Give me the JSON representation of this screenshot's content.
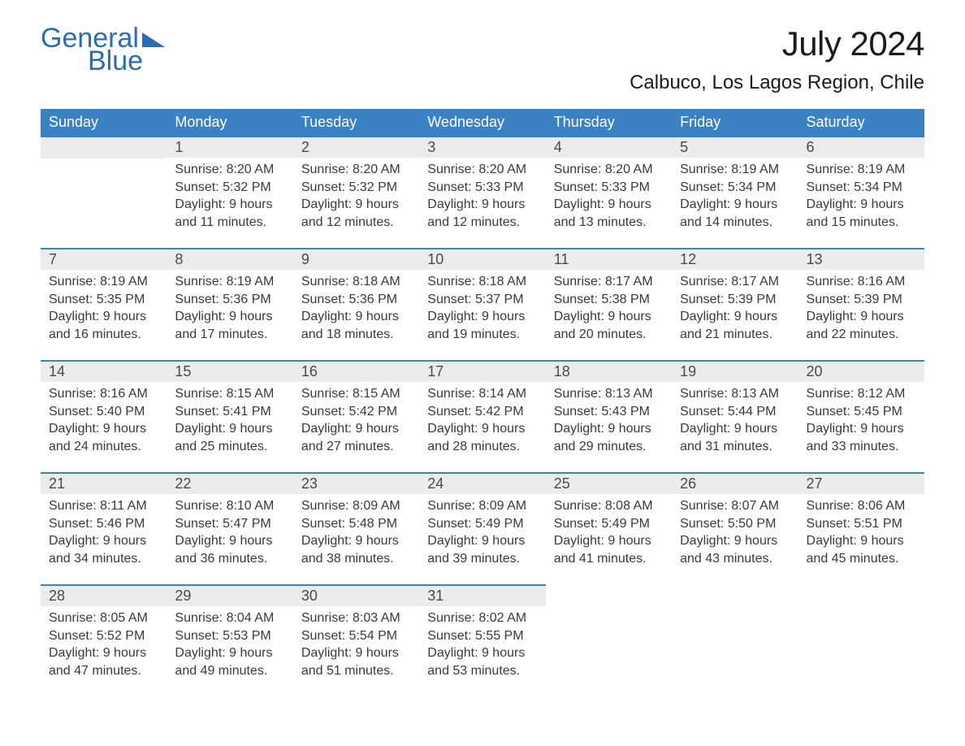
{
  "logo": {
    "line1": "General",
    "line2": "Blue"
  },
  "title": "July 2024",
  "location": "Calbuco, Los Lagos Region, Chile",
  "colors": {
    "brand_blue": "#3b82c4",
    "logo_blue": "#2a6db3",
    "day_header_bg": "#ececec",
    "text": "#333333",
    "background": "#ffffff"
  },
  "typography": {
    "title_fontsize_pt": 32,
    "location_fontsize_pt": 18,
    "weekday_fontsize_pt": 14,
    "daynum_fontsize_pt": 14,
    "body_fontsize_pt": 12
  },
  "weekdays": [
    "Sunday",
    "Monday",
    "Tuesday",
    "Wednesday",
    "Thursday",
    "Friday",
    "Saturday"
  ],
  "first_weekday_index": 1,
  "days": [
    {
      "n": 1,
      "sunrise": "8:20 AM",
      "sunset": "5:32 PM",
      "daylight": "9 hours and 11 minutes."
    },
    {
      "n": 2,
      "sunrise": "8:20 AM",
      "sunset": "5:32 PM",
      "daylight": "9 hours and 12 minutes."
    },
    {
      "n": 3,
      "sunrise": "8:20 AM",
      "sunset": "5:33 PM",
      "daylight": "9 hours and 12 minutes."
    },
    {
      "n": 4,
      "sunrise": "8:20 AM",
      "sunset": "5:33 PM",
      "daylight": "9 hours and 13 minutes."
    },
    {
      "n": 5,
      "sunrise": "8:19 AM",
      "sunset": "5:34 PM",
      "daylight": "9 hours and 14 minutes."
    },
    {
      "n": 6,
      "sunrise": "8:19 AM",
      "sunset": "5:34 PM",
      "daylight": "9 hours and 15 minutes."
    },
    {
      "n": 7,
      "sunrise": "8:19 AM",
      "sunset": "5:35 PM",
      "daylight": "9 hours and 16 minutes."
    },
    {
      "n": 8,
      "sunrise": "8:19 AM",
      "sunset": "5:36 PM",
      "daylight": "9 hours and 17 minutes."
    },
    {
      "n": 9,
      "sunrise": "8:18 AM",
      "sunset": "5:36 PM",
      "daylight": "9 hours and 18 minutes."
    },
    {
      "n": 10,
      "sunrise": "8:18 AM",
      "sunset": "5:37 PM",
      "daylight": "9 hours and 19 minutes."
    },
    {
      "n": 11,
      "sunrise": "8:17 AM",
      "sunset": "5:38 PM",
      "daylight": "9 hours and 20 minutes."
    },
    {
      "n": 12,
      "sunrise": "8:17 AM",
      "sunset": "5:39 PM",
      "daylight": "9 hours and 21 minutes."
    },
    {
      "n": 13,
      "sunrise": "8:16 AM",
      "sunset": "5:39 PM",
      "daylight": "9 hours and 22 minutes."
    },
    {
      "n": 14,
      "sunrise": "8:16 AM",
      "sunset": "5:40 PM",
      "daylight": "9 hours and 24 minutes."
    },
    {
      "n": 15,
      "sunrise": "8:15 AM",
      "sunset": "5:41 PM",
      "daylight": "9 hours and 25 minutes."
    },
    {
      "n": 16,
      "sunrise": "8:15 AM",
      "sunset": "5:42 PM",
      "daylight": "9 hours and 27 minutes."
    },
    {
      "n": 17,
      "sunrise": "8:14 AM",
      "sunset": "5:42 PM",
      "daylight": "9 hours and 28 minutes."
    },
    {
      "n": 18,
      "sunrise": "8:13 AM",
      "sunset": "5:43 PM",
      "daylight": "9 hours and 29 minutes."
    },
    {
      "n": 19,
      "sunrise": "8:13 AM",
      "sunset": "5:44 PM",
      "daylight": "9 hours and 31 minutes."
    },
    {
      "n": 20,
      "sunrise": "8:12 AM",
      "sunset": "5:45 PM",
      "daylight": "9 hours and 33 minutes."
    },
    {
      "n": 21,
      "sunrise": "8:11 AM",
      "sunset": "5:46 PM",
      "daylight": "9 hours and 34 minutes."
    },
    {
      "n": 22,
      "sunrise": "8:10 AM",
      "sunset": "5:47 PM",
      "daylight": "9 hours and 36 minutes."
    },
    {
      "n": 23,
      "sunrise": "8:09 AM",
      "sunset": "5:48 PM",
      "daylight": "9 hours and 38 minutes."
    },
    {
      "n": 24,
      "sunrise": "8:09 AM",
      "sunset": "5:49 PM",
      "daylight": "9 hours and 39 minutes."
    },
    {
      "n": 25,
      "sunrise": "8:08 AM",
      "sunset": "5:49 PM",
      "daylight": "9 hours and 41 minutes."
    },
    {
      "n": 26,
      "sunrise": "8:07 AM",
      "sunset": "5:50 PM",
      "daylight": "9 hours and 43 minutes."
    },
    {
      "n": 27,
      "sunrise": "8:06 AM",
      "sunset": "5:51 PM",
      "daylight": "9 hours and 45 minutes."
    },
    {
      "n": 28,
      "sunrise": "8:05 AM",
      "sunset": "5:52 PM",
      "daylight": "9 hours and 47 minutes."
    },
    {
      "n": 29,
      "sunrise": "8:04 AM",
      "sunset": "5:53 PM",
      "daylight": "9 hours and 49 minutes."
    },
    {
      "n": 30,
      "sunrise": "8:03 AM",
      "sunset": "5:54 PM",
      "daylight": "9 hours and 51 minutes."
    },
    {
      "n": 31,
      "sunrise": "8:02 AM",
      "sunset": "5:55 PM",
      "daylight": "9 hours and 53 minutes."
    }
  ],
  "labels": {
    "sunrise": "Sunrise:",
    "sunset": "Sunset:",
    "daylight": "Daylight:"
  }
}
